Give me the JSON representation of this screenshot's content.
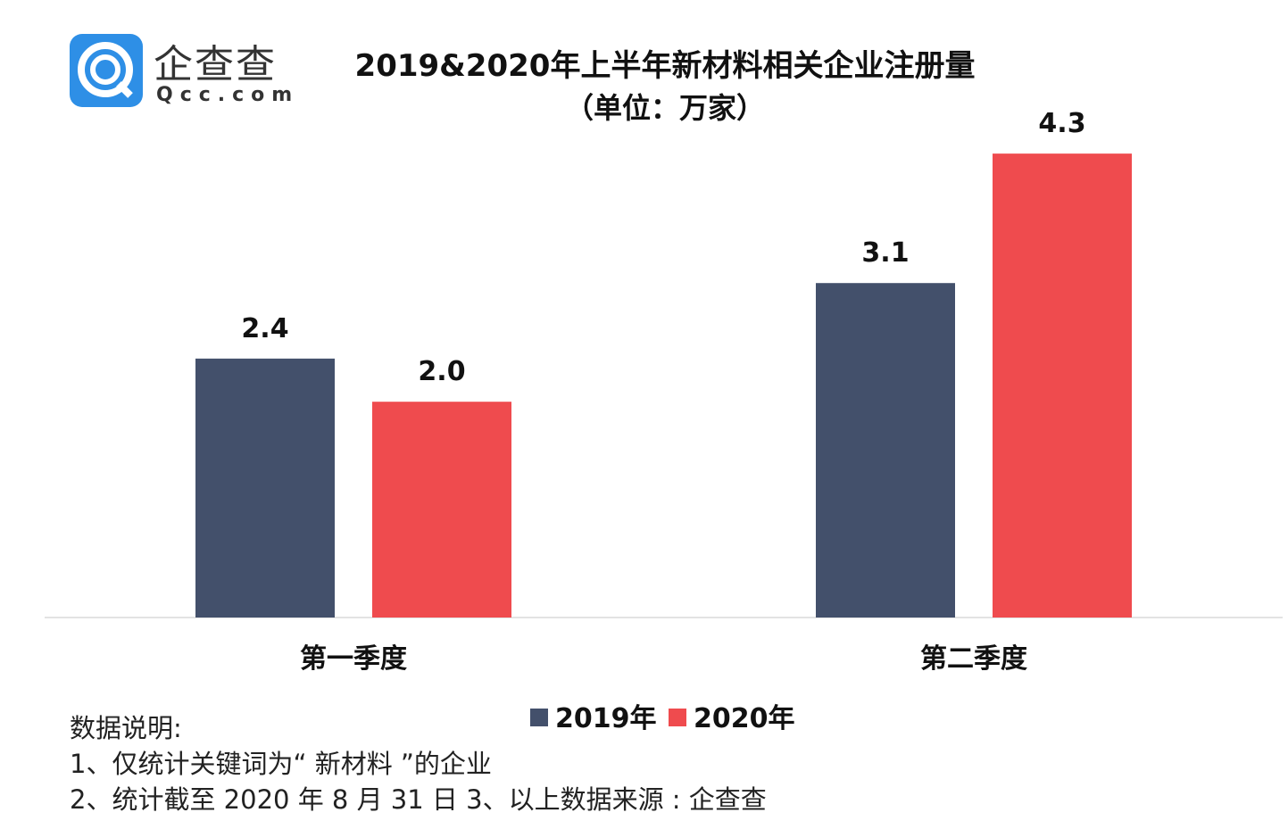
{
  "logo": {
    "cn": "企查查",
    "en": "Qcc.com",
    "color": "#2e8fe6"
  },
  "chart_data": {
    "type": "bar",
    "title": "2019&2020年上半年新材料相关企业注册量",
    "subtitle": "（单位：万家）",
    "categories": [
      "第一季度",
      "第二季度"
    ],
    "series": [
      {
        "name": "2019年",
        "values": [
          2.4,
          3.1
        ],
        "color": "#43506b"
      },
      {
        "name": "2020年",
        "values": [
          2.0,
          4.3
        ],
        "color": "#ef4b4e"
      }
    ],
    "data_labels": [
      [
        "2.4",
        "3.1"
      ],
      [
        "2.0",
        "4.3"
      ]
    ],
    "ylim": [
      0,
      4.5
    ],
    "grid": false,
    "legend": "bottom-center"
  },
  "notes": {
    "heading": "数据说明:",
    "line1": "1、仅统计关键词为“ 新材料 ”的企业",
    "line2": "2、统计截至 2020 年 8 月 31 日  3、以上数据来源 : 企查查"
  }
}
